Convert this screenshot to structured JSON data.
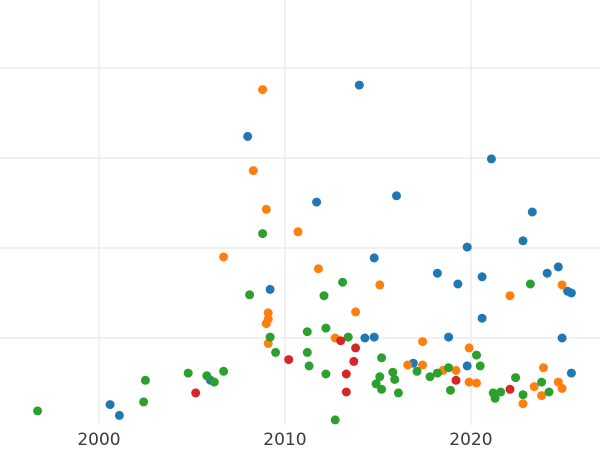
{
  "chart_data": {
    "type": "scatter",
    "title": "",
    "xlabel": "",
    "ylabel": "",
    "x_ticks": [
      2000,
      2010,
      2020
    ],
    "x_tick_labels": [
      "2000",
      "2010",
      "2020"
    ],
    "x_range": [
      1994.68,
      2026.94
    ],
    "y_range": [
      0.033,
      4.756
    ],
    "y_gridlines": [
      1,
      2,
      3,
      4
    ],
    "y_tick_labels_visible": false,
    "grid": true,
    "legend": "none",
    "style": {
      "background": "#ffffff",
      "grid_color": "#e7e7e7",
      "tick_label_color": "#3b3b3b",
      "tick_font_size": 17,
      "marker_radius": 4.5
    },
    "series": [
      {
        "name": "blue",
        "color": "#1f77b4",
        "points": [
          [
            2014.0,
            3.81
          ],
          [
            2008.0,
            3.24
          ],
          [
            2021.1,
            2.99
          ],
          [
            2011.7,
            2.51
          ],
          [
            2016.0,
            2.58
          ],
          [
            2023.3,
            2.4
          ],
          [
            2022.8,
            2.08
          ],
          [
            2019.8,
            2.01
          ],
          [
            2014.8,
            1.89
          ],
          [
            2018.2,
            1.72
          ],
          [
            2019.3,
            1.6
          ],
          [
            2020.6,
            1.68
          ],
          [
            2024.1,
            1.72
          ],
          [
            2024.7,
            1.79
          ],
          [
            2025.2,
            1.52
          ],
          [
            2025.4,
            1.5
          ],
          [
            2020.6,
            1.22
          ],
          [
            2009.2,
            1.54
          ],
          [
            2014.3,
            1.0
          ],
          [
            2014.8,
            1.01
          ],
          [
            2018.8,
            1.01
          ],
          [
            2024.9,
            1.0
          ],
          [
            2016.9,
            0.72
          ],
          [
            2019.8,
            0.69
          ],
          [
            2025.4,
            0.61
          ],
          [
            2006.0,
            0.53
          ],
          [
            2000.6,
            0.26
          ],
          [
            2001.1,
            0.14
          ]
        ]
      },
      {
        "name": "orange",
        "color": "#ff7f0e",
        "points": [
          [
            2008.8,
            3.76
          ],
          [
            2008.3,
            2.86
          ],
          [
            2009.0,
            2.43
          ],
          [
            2006.7,
            1.9
          ],
          [
            2010.7,
            2.18
          ],
          [
            2011.8,
            1.77
          ],
          [
            2015.1,
            1.59
          ],
          [
            2009.1,
            1.28
          ],
          [
            2009.1,
            1.21
          ],
          [
            2009.0,
            1.16
          ],
          [
            2009.1,
            0.94
          ],
          [
            2013.8,
            1.29
          ],
          [
            2024.9,
            1.59
          ],
          [
            2022.1,
            1.47
          ],
          [
            2012.7,
            1.0
          ],
          [
            2017.4,
            0.96
          ],
          [
            2019.9,
            0.89
          ],
          [
            2016.6,
            0.7
          ],
          [
            2017.4,
            0.7
          ],
          [
            2018.5,
            0.64
          ],
          [
            2019.2,
            0.64
          ],
          [
            2019.9,
            0.51
          ],
          [
            2020.3,
            0.5
          ],
          [
            2022.8,
            0.27
          ],
          [
            2023.4,
            0.46
          ],
          [
            2023.9,
            0.67
          ],
          [
            2024.7,
            0.51
          ],
          [
            2024.9,
            0.44
          ],
          [
            2023.8,
            0.36
          ]
        ]
      },
      {
        "name": "green",
        "color": "#2ca02c",
        "points": [
          [
            2008.8,
            2.16
          ],
          [
            2008.1,
            1.48
          ],
          [
            2013.1,
            1.62
          ],
          [
            2012.1,
            1.47
          ],
          [
            2023.2,
            1.6
          ],
          [
            2009.2,
            1.01
          ],
          [
            2009.5,
            0.84
          ],
          [
            2012.2,
            1.11
          ],
          [
            2011.2,
            1.07
          ],
          [
            2011.2,
            0.84
          ],
          [
            2011.3,
            0.69
          ],
          [
            2012.2,
            0.6
          ],
          [
            2013.4,
            1.01
          ],
          [
            2015.2,
            0.78
          ],
          [
            2020.3,
            0.81
          ],
          [
            2017.1,
            0.63
          ],
          [
            2017.8,
            0.57
          ],
          [
            2018.2,
            0.61
          ],
          [
            2018.8,
            0.67
          ],
          [
            2020.5,
            0.69
          ],
          [
            2015.8,
            0.62
          ],
          [
            2015.9,
            0.54
          ],
          [
            2015.1,
            0.57
          ],
          [
            2014.9,
            0.49
          ],
          [
            2015.2,
            0.43
          ],
          [
            2016.1,
            0.39
          ],
          [
            2018.9,
            0.42
          ],
          [
            2021.2,
            0.39
          ],
          [
            2021.3,
            0.33
          ],
          [
            2021.6,
            0.4
          ],
          [
            2022.4,
            0.56
          ],
          [
            2022.8,
            0.37
          ],
          [
            2023.8,
            0.51
          ],
          [
            2024.2,
            0.4
          ],
          [
            2012.7,
            0.09
          ],
          [
            1996.7,
            0.19
          ],
          [
            2002.5,
            0.53
          ],
          [
            2002.4,
            0.29
          ],
          [
            2004.8,
            0.61
          ],
          [
            2005.8,
            0.58
          ],
          [
            2006.2,
            0.51
          ],
          [
            2006.7,
            0.63
          ]
        ]
      },
      {
        "name": "red",
        "color": "#d62728",
        "points": [
          [
            2005.2,
            0.39
          ],
          [
            2010.2,
            0.76
          ],
          [
            2013.0,
            0.97
          ],
          [
            2013.8,
            0.89
          ],
          [
            2013.7,
            0.74
          ],
          [
            2013.3,
            0.6
          ],
          [
            2013.3,
            0.4
          ],
          [
            2019.2,
            0.53
          ],
          [
            2022.1,
            0.43
          ]
        ]
      }
    ]
  }
}
